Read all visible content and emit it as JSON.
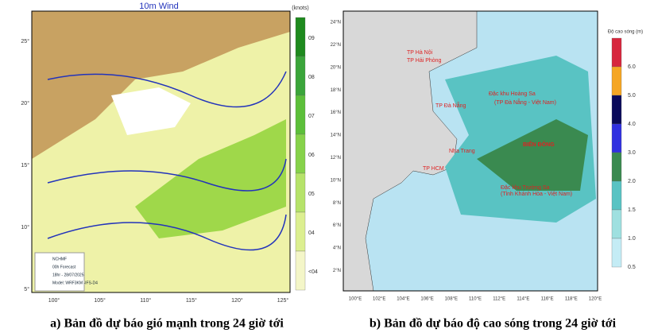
{
  "panel_a": {
    "title": "10m Wind",
    "unit": "(knots)",
    "colorbar_labels": [
      "09",
      "08",
      "07",
      "06",
      "05",
      "04",
      "<04"
    ],
    "lat_labels": [
      "25°",
      "20°",
      "15°",
      "10°",
      "5°"
    ],
    "lon_labels": [
      "100°",
      "105°",
      "110°",
      "115°",
      "120°",
      "125°"
    ],
    "info": [
      "NCHMF",
      "00h Forecast",
      "18hr - 28/07/2025",
      "Model: WRF3KM -IFS-D4"
    ],
    "caption": "a) Bản đồ dự báo gió mạnh trong 24 giờ tới"
  },
  "panel_b": {
    "colorbar_title": "Độ cao sóng (m)",
    "colorbar_labels": [
      "6.0",
      "5.0",
      "4.0",
      "3.0",
      "2.0",
      "1.5",
      "1.0",
      "0.5"
    ],
    "lat_labels": [
      "24°N",
      "22°N",
      "20°N",
      "18°N",
      "16°N",
      "14°N",
      "12°N",
      "10°N",
      "8°N",
      "6°N",
      "4°N",
      "2°N"
    ],
    "lon_labels": [
      "100°E",
      "102°E",
      "104°E",
      "106°E",
      "108°E",
      "110°E",
      "112°E",
      "114°E",
      "116°E",
      "118°E",
      "120°E"
    ],
    "places": [
      "TP Hà Nội",
      "TP Hải Phòng",
      "Đặc khu Hoàng Sa",
      "(TP Đà Nẵng - Việt Nam)",
      "TP Đà Nẵng",
      "BIỂN ĐÔNG",
      "Nha Trang",
      "TP HCM",
      "Đặc khu Trường Sa",
      "(Tỉnh Khánh Hòa - Việt Nam)"
    ],
    "caption": "b) Bản đồ dự báo độ cao sóng trong 24 giờ tới"
  }
}
